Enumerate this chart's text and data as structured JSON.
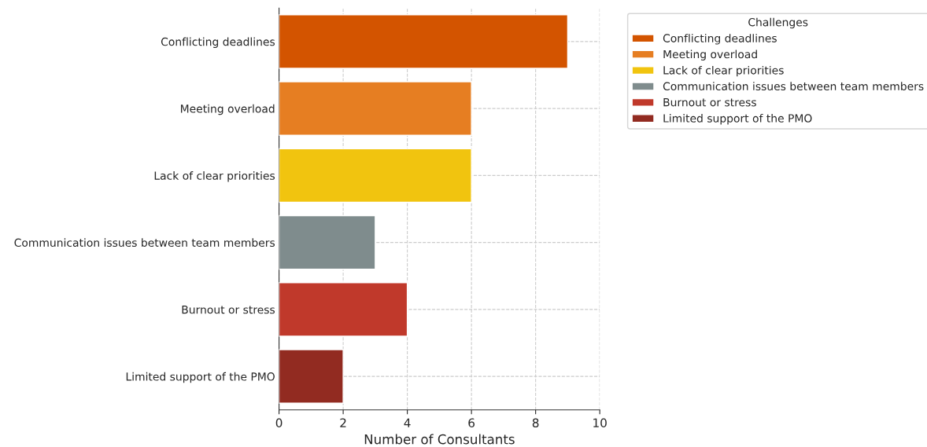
{
  "chart_data": {
    "type": "bar",
    "orientation": "horizontal",
    "xlabel": "Number of Consultants",
    "legend_title": "Challenges",
    "categories": [
      "Conflicting deadlines",
      "Meeting overload",
      "Lack of clear priorities",
      "Communication issues between team members",
      "Burnout or stress",
      "Limited support of the PMO"
    ],
    "series": [
      {
        "name": "Conflicting deadlines",
        "color": "#d35400",
        "values": [
          9,
          null,
          null,
          null,
          null,
          null
        ]
      },
      {
        "name": "Meeting overload",
        "color": "#e67e22",
        "values": [
          null,
          6,
          null,
          null,
          null,
          null
        ]
      },
      {
        "name": "Lack of clear priorities",
        "color": "#f1c40f",
        "values": [
          null,
          null,
          6,
          null,
          null,
          null
        ]
      },
      {
        "name": "Communication issues between team members",
        "color": "#7f8c8d",
        "values": [
          null,
          null,
          null,
          3,
          null,
          null
        ]
      },
      {
        "name": "Burnout or stress",
        "color": "#c0392b",
        "values": [
          null,
          null,
          null,
          null,
          4,
          null
        ]
      },
      {
        "name": "Limited support of the PMO",
        "color": "#922b21",
        "values": [
          null,
          null,
          null,
          null,
          null,
          2
        ]
      }
    ],
    "xlim": [
      0,
      10
    ],
    "xticks": [
      0,
      2,
      4,
      6,
      8,
      10
    ],
    "grid": true,
    "legend": "top right"
  }
}
